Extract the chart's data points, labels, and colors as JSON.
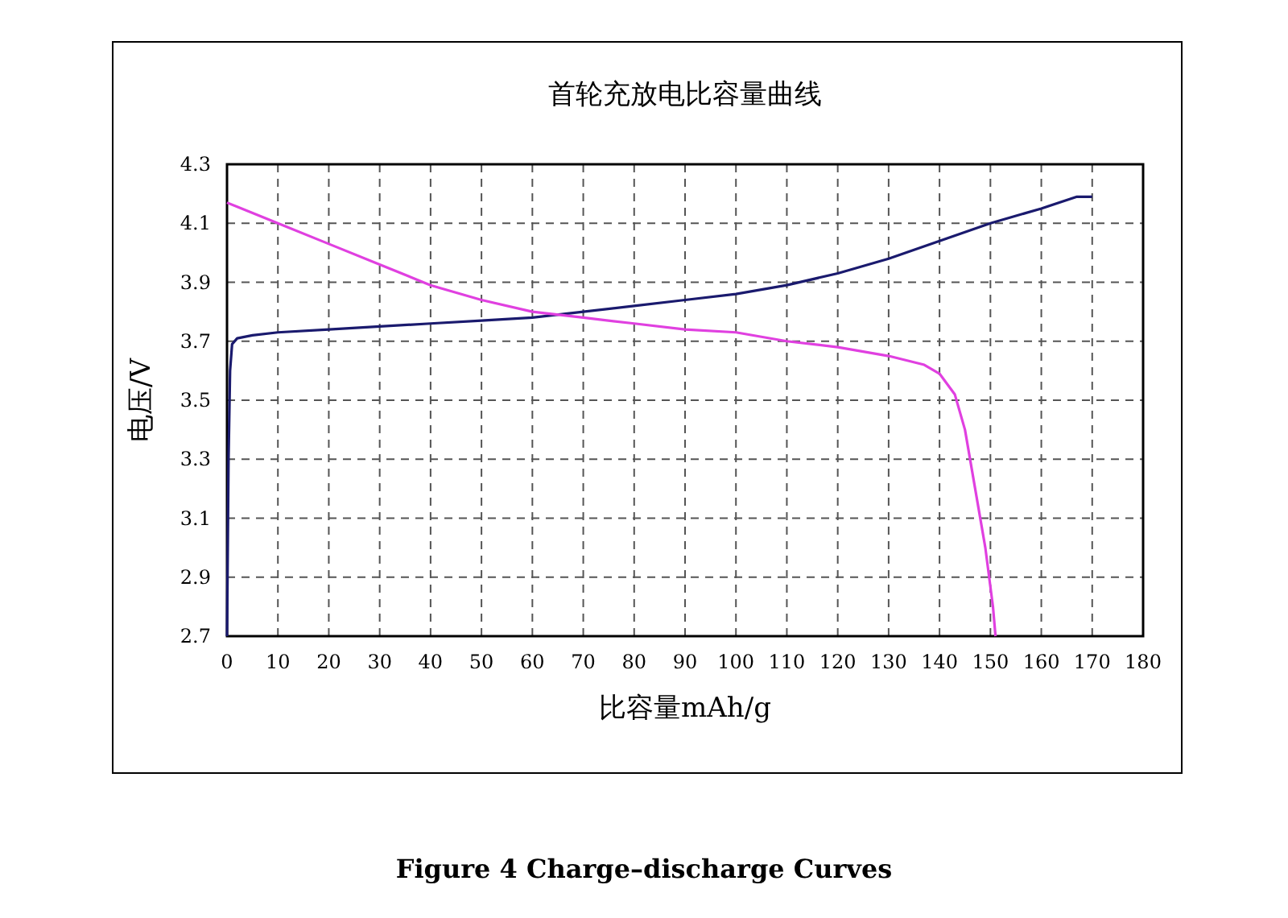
{
  "chart_data": {
    "type": "line",
    "title": "首轮充放电比容量曲线",
    "xlabel": "比容量mAh/g",
    "ylabel": "电压/V",
    "annotations": [
      "Figure 4 Charge–discharge Curves"
    ],
    "xlim": [
      0,
      180
    ],
    "xticks": [
      0,
      10,
      20,
      30,
      40,
      50,
      60,
      70,
      80,
      90,
      100,
      110,
      120,
      130,
      140,
      150,
      160,
      170,
      180
    ],
    "ylim": [
      2.7,
      4.3
    ],
    "yticks": [
      2.7,
      2.9,
      3.1,
      3.3,
      3.5,
      3.7,
      3.9,
      4.1,
      4.3
    ],
    "grid": true,
    "series": [
      {
        "color": "#1a1a6e",
        "x": [
          0,
          0.3,
          0.6,
          1,
          2,
          5,
          10,
          20,
          30,
          40,
          50,
          60,
          70,
          80,
          90,
          100,
          110,
          120,
          130,
          140,
          150,
          160,
          167,
          170
        ],
        "values": [
          2.7,
          3.3,
          3.6,
          3.69,
          3.71,
          3.72,
          3.73,
          3.74,
          3.75,
          3.76,
          3.77,
          3.78,
          3.8,
          3.82,
          3.84,
          3.86,
          3.89,
          3.93,
          3.98,
          4.04,
          4.1,
          4.15,
          4.19,
          4.19
        ]
      },
      {
        "color": "#e040e0",
        "x": [
          0,
          10,
          20,
          30,
          40,
          50,
          60,
          70,
          80,
          90,
          100,
          110,
          120,
          130,
          137,
          140,
          143,
          145,
          147,
          149,
          150.5,
          151
        ],
        "values": [
          4.17,
          4.1,
          4.03,
          3.96,
          3.89,
          3.84,
          3.8,
          3.78,
          3.76,
          3.74,
          3.73,
          3.7,
          3.68,
          3.65,
          3.62,
          3.59,
          3.52,
          3.4,
          3.2,
          3.0,
          2.8,
          2.7
        ]
      }
    ]
  }
}
